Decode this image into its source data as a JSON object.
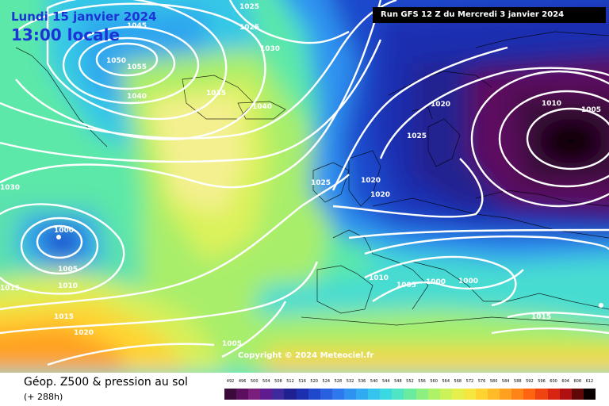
{
  "header": {
    "date_title": "Lundi 15 janvier 2024",
    "local_time": "13:00 locale",
    "run_info": "Run GFS 12 Z du Mercredi 3 janvier 2024"
  },
  "map": {
    "copyright": "Copyright © 2024 Meteociel.fr",
    "isobar_labels": [
      "1025",
      "1025",
      "1045",
      "1050",
      "1055",
      "1040",
      "1030",
      "1035",
      "1040",
      "1020",
      "1025",
      "1025",
      "1020",
      "1020",
      "1010",
      "1005",
      "1030",
      "1000",
      "1005",
      "1010",
      "1015",
      "1015",
      "1020",
      "1005",
      "1010",
      "1005",
      "1000",
      "1000",
      "1015"
    ],
    "accent_colors": {
      "isobar": "#ffffff",
      "title_text": "#1c34d6",
      "banner_bg": "#000000"
    }
  },
  "footer": {
    "product_title": "Géop. Z500 & pression au sol",
    "lead_time": "(+ 288h)"
  },
  "legend": {
    "values": [
      "492",
      "496",
      "500",
      "504",
      "508",
      "512",
      "516",
      "520",
      "524",
      "528",
      "532",
      "536",
      "540",
      "544",
      "548",
      "552",
      "556",
      "560",
      "564",
      "568",
      "572",
      "576",
      "580",
      "584",
      "588",
      "592",
      "596",
      "600",
      "604",
      "608",
      "612"
    ],
    "colors": [
      "#3a0a3a",
      "#5c0f5e",
      "#7a1f7e",
      "#5e1a8e",
      "#3e2a9c",
      "#202090",
      "#1c2fb0",
      "#1f48cc",
      "#2860e0",
      "#2d78ec",
      "#2f92f0",
      "#30aaf0",
      "#34c4ee",
      "#3ad8e0",
      "#4ee4c4",
      "#6aeca0",
      "#8cf080",
      "#aef268",
      "#ccf25a",
      "#e6f04c",
      "#f6e640",
      "#ffd430",
      "#ffbc28",
      "#ffa020",
      "#ff8418",
      "#ff6410",
      "#f04410",
      "#d82410",
      "#b01010",
      "#600808",
      "#0a0000"
    ]
  }
}
